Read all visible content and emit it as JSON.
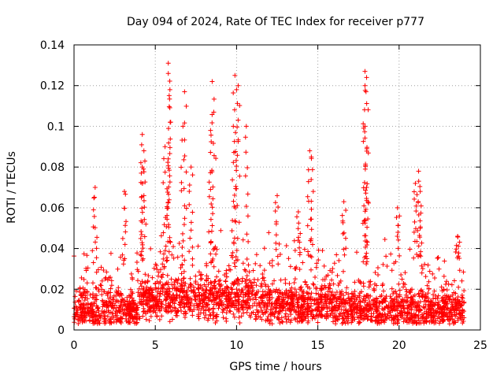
{
  "chart_data": {
    "type": "scatter",
    "title": "Day 094 of 2024, Rate Of TEC Index for receiver p777",
    "xlabel": "GPS time / hours",
    "ylabel": "ROTI / TECUs",
    "xlim": [
      0,
      25
    ],
    "ylim": [
      0,
      0.14
    ],
    "xticks": [
      0,
      5,
      10,
      15,
      20,
      25
    ],
    "xtick_labels": [
      "0",
      "5",
      "10",
      "15",
      "20",
      "25"
    ],
    "yticks": [
      0,
      0.02,
      0.04,
      0.06,
      0.08,
      0.1,
      0.12,
      0.14
    ],
    "ytick_labels": [
      "0",
      "0.02",
      "0.04",
      "0.06",
      "0.08",
      "0.1",
      "0.12",
      "0.14"
    ],
    "grid": true,
    "marker": "+",
    "marker_color": "#ff0000",
    "data_span_hours": [
      0,
      24
    ],
    "typical_band": [
      0.005,
      0.04
    ],
    "peaks": [
      {
        "x": 5.8,
        "y": 0.131
      },
      {
        "x": 5.8,
        "y": 0.126
      },
      {
        "x": 5.9,
        "y": 0.118
      },
      {
        "x": 6.8,
        "y": 0.117
      },
      {
        "x": 6.7,
        "y": 0.1
      },
      {
        "x": 7.2,
        "y": 0.08
      },
      {
        "x": 8.5,
        "y": 0.122
      },
      {
        "x": 8.6,
        "y": 0.107
      },
      {
        "x": 8.4,
        "y": 0.098
      },
      {
        "x": 9.9,
        "y": 0.125
      },
      {
        "x": 10.1,
        "y": 0.12
      },
      {
        "x": 10.0,
        "y": 0.118
      },
      {
        "x": 9.8,
        "y": 0.1
      },
      {
        "x": 10.6,
        "y": 0.1
      },
      {
        "x": 4.2,
        "y": 0.096
      },
      {
        "x": 4.3,
        "y": 0.088
      },
      {
        "x": 4.2,
        "y": 0.08
      },
      {
        "x": 5.6,
        "y": 0.09
      },
      {
        "x": 5.8,
        "y": 0.084
      },
      {
        "x": 1.3,
        "y": 0.07
      },
      {
        "x": 3.1,
        "y": 0.068
      },
      {
        "x": 14.5,
        "y": 0.088
      },
      {
        "x": 14.6,
        "y": 0.085
      },
      {
        "x": 17.9,
        "y": 0.127
      },
      {
        "x": 18.0,
        "y": 0.124
      },
      {
        "x": 17.9,
        "y": 0.12
      },
      {
        "x": 17.9,
        "y": 0.1
      },
      {
        "x": 18.0,
        "y": 0.07
      },
      {
        "x": 16.6,
        "y": 0.063
      },
      {
        "x": 19.9,
        "y": 0.06
      },
      {
        "x": 21.2,
        "y": 0.078
      },
      {
        "x": 21.0,
        "y": 0.072
      },
      {
        "x": 21.3,
        "y": 0.068
      },
      {
        "x": 12.5,
        "y": 0.066
      },
      {
        "x": 13.8,
        "y": 0.058
      },
      {
        "x": 23.6,
        "y": 0.046
      }
    ]
  }
}
